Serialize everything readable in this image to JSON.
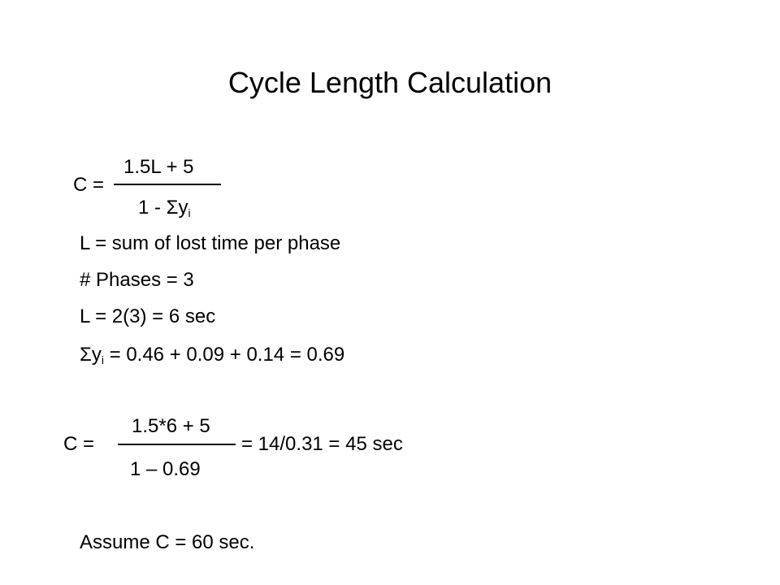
{
  "title": "Cycle Length Calculation",
  "formula1": {
    "lhs": "C =",
    "numerator": "1.5L + 5",
    "denominator": {
      "main": "1 - Σy",
      "sub": "i"
    }
  },
  "definitions": [
    {
      "text": "L = sum of lost time per phase"
    },
    {
      "text": "# Phases = 3"
    },
    {
      "text": "L = 2(3) = 6 sec"
    },
    {
      "main": "Σy",
      "sub": "i",
      "rest": " = 0.46 + 0.09 + 0.14 = 0.69"
    }
  ],
  "formula2": {
    "lhs": "C =",
    "numerator": "1.5*6 + 5",
    "denominator": "1 – 0.69",
    "result": "= 14/0.31 = 45 sec"
  },
  "conclusion": "Assume C = 60 sec."
}
